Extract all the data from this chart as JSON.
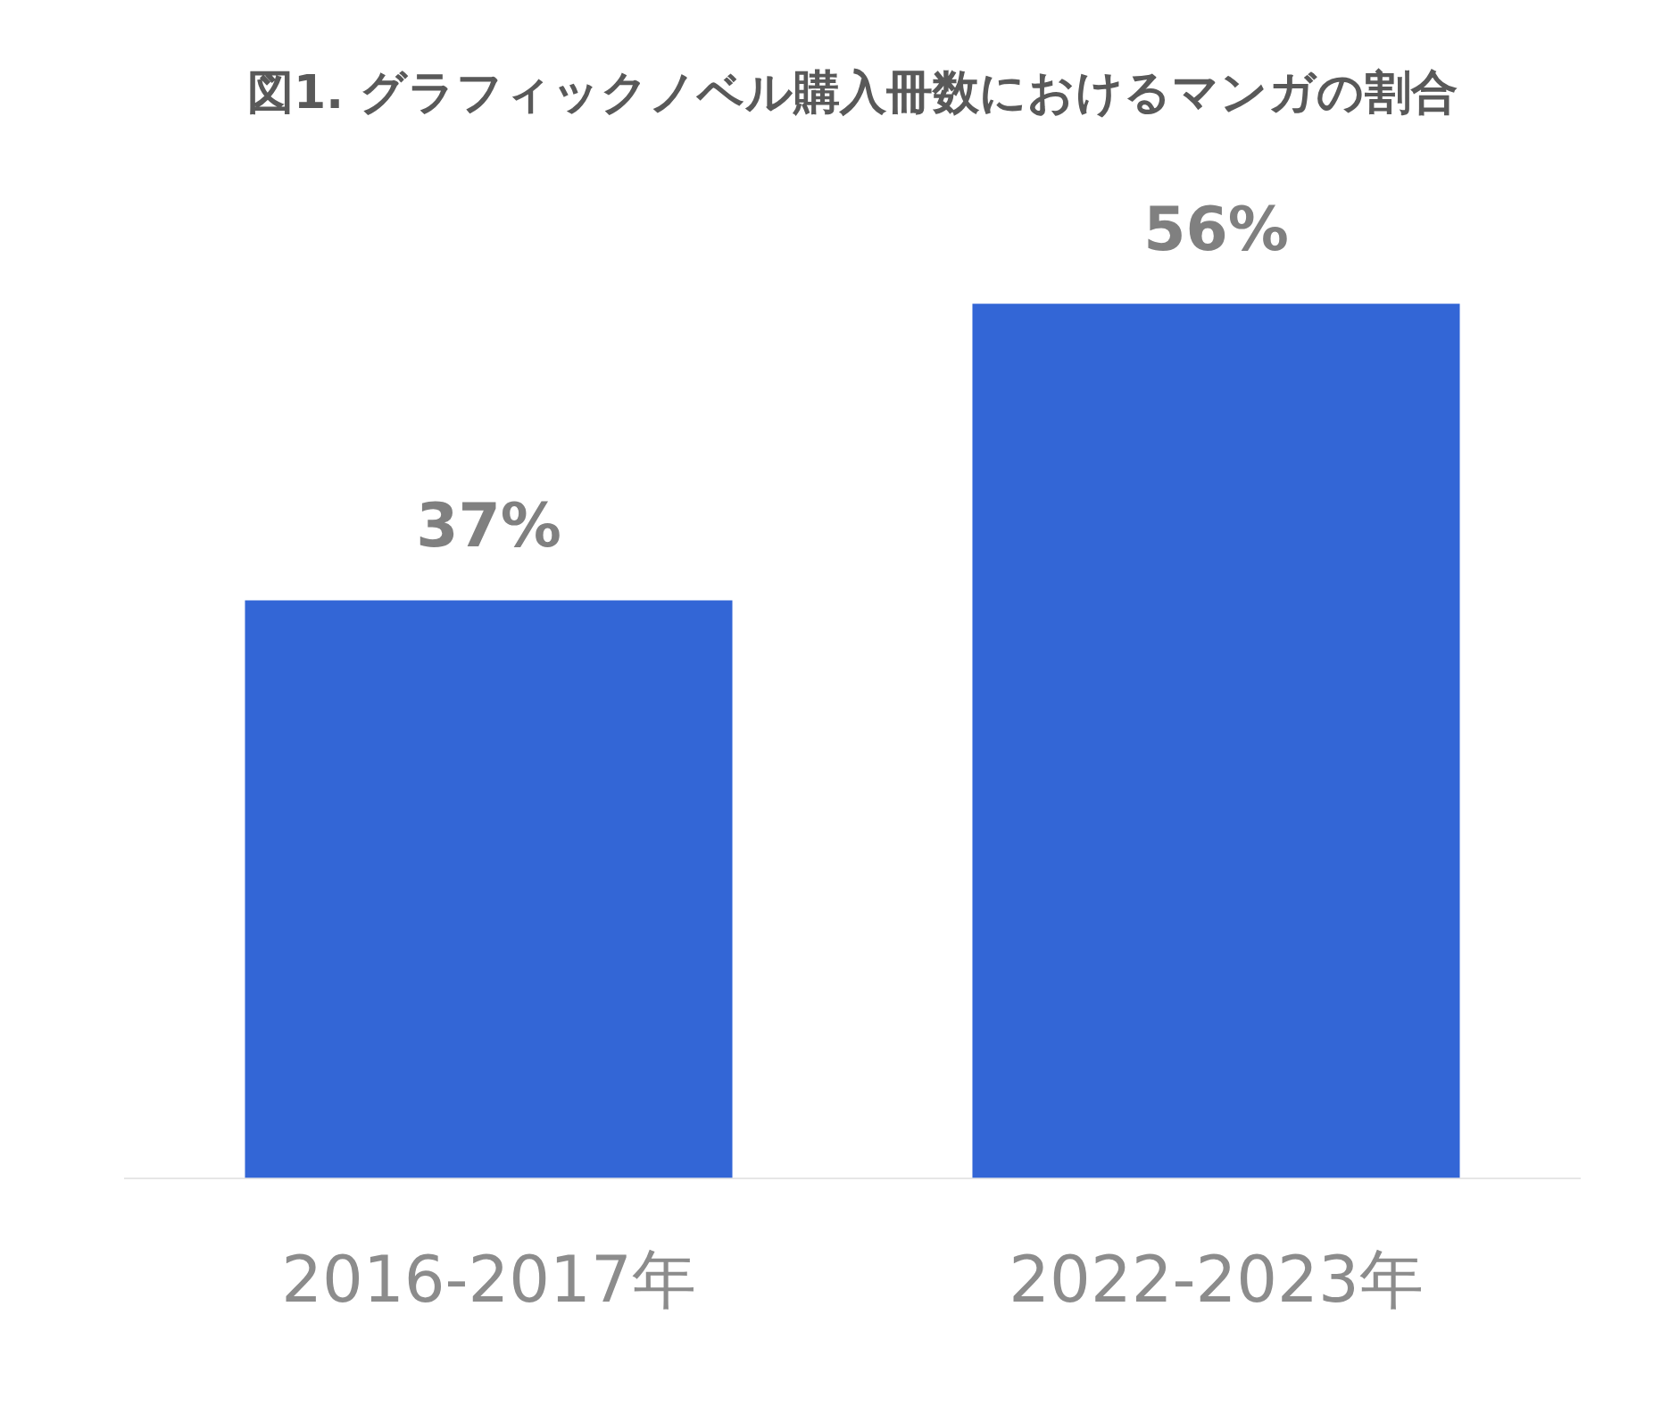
{
  "chart_data": {
    "type": "bar",
    "title": "図1. グラフィックノベル購入冊数におけるマンガの割合",
    "categories": [
      "2016-2017年",
      "2022-2023年"
    ],
    "values": [
      37,
      56
    ],
    "color": "#3366d6",
    "value_labels": [
      "37%",
      "56%"
    ],
    "tick_labels": "x",
    "grid": false,
    "legend": false
  }
}
